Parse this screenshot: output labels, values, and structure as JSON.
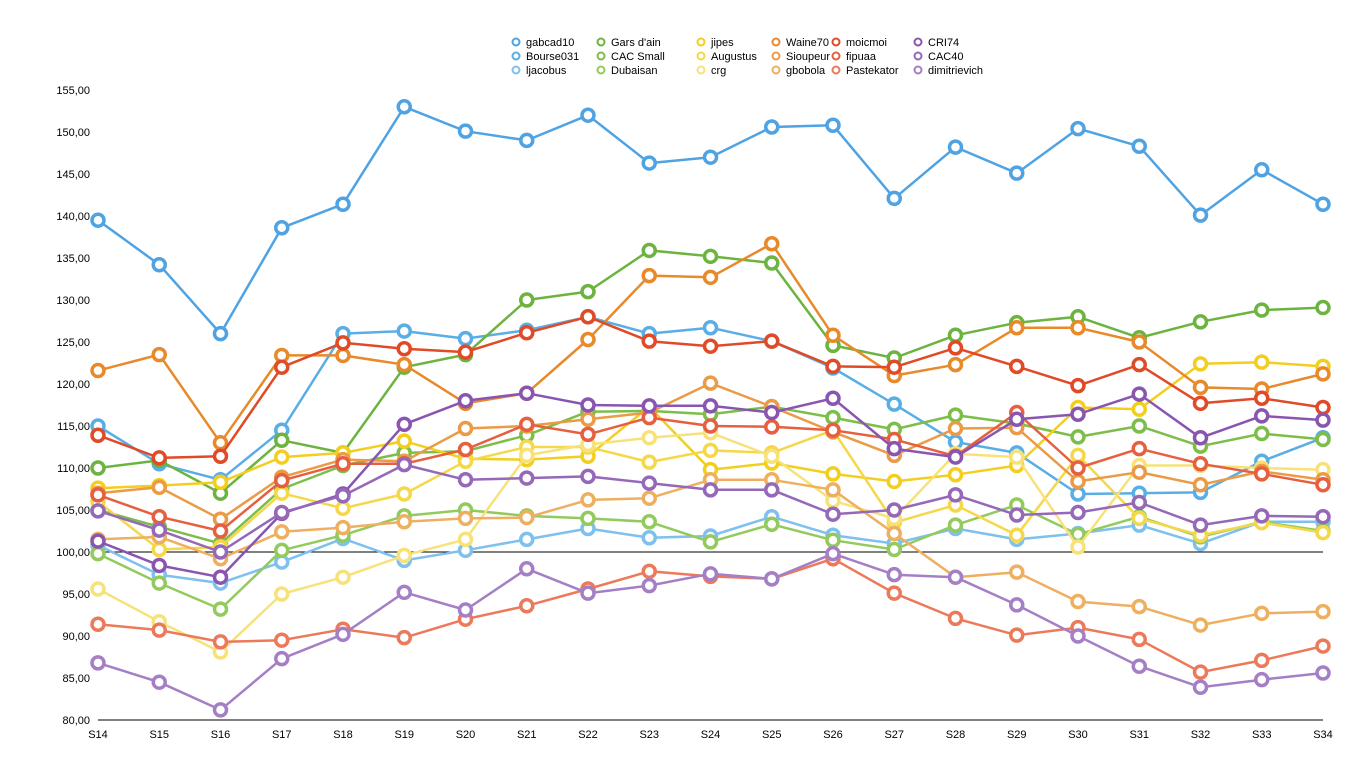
{
  "chart_data": {
    "type": "line",
    "title": "",
    "xlabel": "",
    "ylabel": "",
    "categories": [
      "S14",
      "S15",
      "S16",
      "S17",
      "S18",
      "S19",
      "S20",
      "S21",
      "S22",
      "S23",
      "S24",
      "S25",
      "S26",
      "S27",
      "S28",
      "S29",
      "S30",
      "S31",
      "S32",
      "S33",
      "S34"
    ],
    "y_ticks": [
      "80,00",
      "85,00",
      "90,00",
      "95,00",
      "100,00",
      "105,00",
      "110,00",
      "115,00",
      "120,00",
      "125,00",
      "130,00",
      "135,00",
      "140,00",
      "145,00",
      "150,00",
      "155,00"
    ],
    "ylim": [
      80,
      156
    ],
    "reference_line": 100,
    "grid": false,
    "legend_position": "top",
    "series": [
      {
        "name": "gabcad10",
        "color": "#4fa3e3",
        "values": [
          139.5,
          134.2,
          126.0,
          138.6,
          141.4,
          153.0,
          150.1,
          149.0,
          152.0,
          146.3,
          147.0,
          150.6,
          150.8,
          142.1,
          148.2,
          145.1,
          150.4,
          148.3,
          140.1,
          145.5,
          141.4
        ]
      },
      {
        "name": "Bourse031",
        "color": "#5aaee6",
        "values": [
          115.0,
          110.5,
          108.6,
          114.5,
          126.0,
          126.3,
          125.4,
          126.4,
          128.0,
          126.0,
          126.7,
          125.1,
          121.9,
          117.6,
          113.1,
          111.8,
          106.9,
          107.0,
          107.1,
          110.8,
          113.6
        ]
      },
      {
        "name": "ljacobus",
        "color": "#7ec0ee",
        "values": [
          100.8,
          97.3,
          96.3,
          98.8,
          101.6,
          99.0,
          100.2,
          101.5,
          102.8,
          101.7,
          101.9,
          104.2,
          102.0,
          101.0,
          102.8,
          101.5,
          102.2,
          103.2,
          101.0,
          103.6,
          103.6
        ]
      },
      {
        "name": "Gars d'ain",
        "color": "#6cb33f",
        "values": [
          110.0,
          110.9,
          107.0,
          113.3,
          111.8,
          122.0,
          123.5,
          130.0,
          131.0,
          135.9,
          135.2,
          134.4,
          124.6,
          123.1,
          125.8,
          127.3,
          128.0,
          125.5,
          127.4,
          128.8,
          129.1
        ]
      },
      {
        "name": "CAC Small",
        "color": "#7dbe4a",
        "values": [
          105.0,
          103.0,
          101.0,
          107.5,
          110.3,
          111.8,
          112.0,
          113.9,
          116.7,
          116.8,
          116.4,
          117.3,
          116.0,
          114.6,
          116.3,
          115.3,
          113.7,
          115.0,
          112.6,
          114.1,
          113.4
        ]
      },
      {
        "name": "Dubaisan",
        "color": "#93ca5e",
        "values": [
          99.8,
          96.3,
          93.2,
          100.2,
          102.0,
          104.3,
          105.0,
          104.3,
          104.0,
          103.6,
          101.2,
          103.3,
          101.4,
          100.3,
          103.2,
          105.6,
          102.1,
          104.2,
          101.8,
          103.6,
          102.5
        ]
      },
      {
        "name": "jipes",
        "color": "#f2cf1f",
        "values": [
          107.6,
          107.9,
          108.3,
          111.3,
          111.8,
          113.2,
          111.1,
          111.0,
          111.4,
          117.3,
          109.8,
          110.6,
          109.3,
          108.4,
          109.2,
          110.3,
          117.2,
          117.0,
          122.4,
          122.6,
          122.1
        ]
      },
      {
        "name": "Augustus",
        "color": "#f5d84a",
        "values": [
          106.0,
          100.3,
          100.6,
          107.0,
          105.2,
          106.9,
          110.8,
          112.5,
          112.5,
          110.7,
          112.1,
          111.8,
          114.5,
          103.5,
          105.6,
          102.0,
          111.5,
          104.0,
          102.0,
          103.5,
          102.3
        ]
      },
      {
        "name": "crg",
        "color": "#f7e27a",
        "values": [
          95.6,
          91.7,
          88.1,
          95.0,
          97.0,
          99.6,
          101.5,
          111.5,
          112.8,
          113.6,
          114.2,
          111.4,
          106.1,
          104.0,
          111.7,
          111.3,
          100.6,
          110.3,
          110.3,
          110.0,
          109.8
        ]
      },
      {
        "name": "Waine70",
        "color": "#e8892a",
        "values": [
          121.6,
          123.5,
          113.0,
          123.4,
          123.4,
          122.3,
          117.7,
          118.9,
          125.3,
          132.9,
          132.7,
          136.7,
          125.8,
          121.0,
          122.3,
          126.7,
          126.7,
          125.0,
          119.6,
          119.4,
          121.2
        ]
      },
      {
        "name": "Sioupeur",
        "color": "#eb9b45",
        "values": [
          107.0,
          107.7,
          103.9,
          108.9,
          111.0,
          110.8,
          114.7,
          115.0,
          115.8,
          116.6,
          120.1,
          117.3,
          114.3,
          111.5,
          114.7,
          114.8,
          108.4,
          109.5,
          108.0,
          109.6,
          108.6
        ]
      },
      {
        "name": "gbobola",
        "color": "#eeb060",
        "values": [
          101.5,
          101.8,
          99.2,
          102.4,
          102.9,
          103.6,
          104.0,
          104.1,
          106.2,
          106.4,
          108.6,
          108.6,
          107.4,
          102.2,
          97.0,
          97.6,
          94.1,
          93.5,
          91.3,
          92.7,
          92.9
        ]
      },
      {
        "name": "moicmoi",
        "color": "#e04a27",
        "values": [
          113.9,
          111.2,
          111.4,
          122.0,
          124.9,
          124.2,
          123.8,
          126.1,
          128.0,
          125.1,
          124.5,
          125.1,
          122.1,
          122.0,
          124.3,
          122.1,
          119.8,
          122.3,
          117.7,
          118.3,
          117.2
        ]
      },
      {
        "name": "fipuaa",
        "color": "#e66040",
        "values": [
          106.8,
          104.2,
          102.5,
          108.5,
          110.5,
          110.5,
          112.2,
          115.2,
          114.0,
          116.0,
          115.0,
          114.9,
          114.5,
          113.4,
          111.4,
          116.6,
          110.0,
          112.3,
          110.5,
          109.3,
          108.0
        ]
      },
      {
        "name": "Pastekator",
        "color": "#ec7a5a",
        "values": [
          91.4,
          90.7,
          89.3,
          89.5,
          90.8,
          89.8,
          92.0,
          93.6,
          95.6,
          97.7,
          97.1,
          96.8,
          99.2,
          95.1,
          92.1,
          90.1,
          91.0,
          89.6,
          85.7,
          87.1,
          88.8
        ]
      },
      {
        "name": "CRI74",
        "color": "#8a55b0",
        "values": [
          101.3,
          98.4,
          97.0,
          104.6,
          106.9,
          115.2,
          118.0,
          118.9,
          117.5,
          117.4,
          117.4,
          116.6,
          118.3,
          112.3,
          111.3,
          115.8,
          116.4,
          118.8,
          113.6,
          116.2,
          115.7
        ]
      },
      {
        "name": "CAC40",
        "color": "#9568b8",
        "values": [
          104.9,
          102.6,
          100.0,
          104.7,
          106.7,
          110.4,
          108.6,
          108.8,
          109.0,
          108.2,
          107.4,
          107.4,
          104.5,
          105.0,
          106.8,
          104.4,
          104.7,
          105.9,
          103.2,
          104.3,
          104.2
        ]
      },
      {
        "name": "dimitrievich",
        "color": "#a57fc5",
        "values": [
          86.8,
          84.5,
          81.2,
          87.3,
          90.2,
          95.2,
          93.1,
          98.0,
          95.1,
          96.0,
          97.4,
          96.8,
          99.8,
          97.3,
          97.0,
          93.7,
          90.0,
          86.4,
          83.9,
          84.8,
          85.6
        ]
      }
    ]
  }
}
